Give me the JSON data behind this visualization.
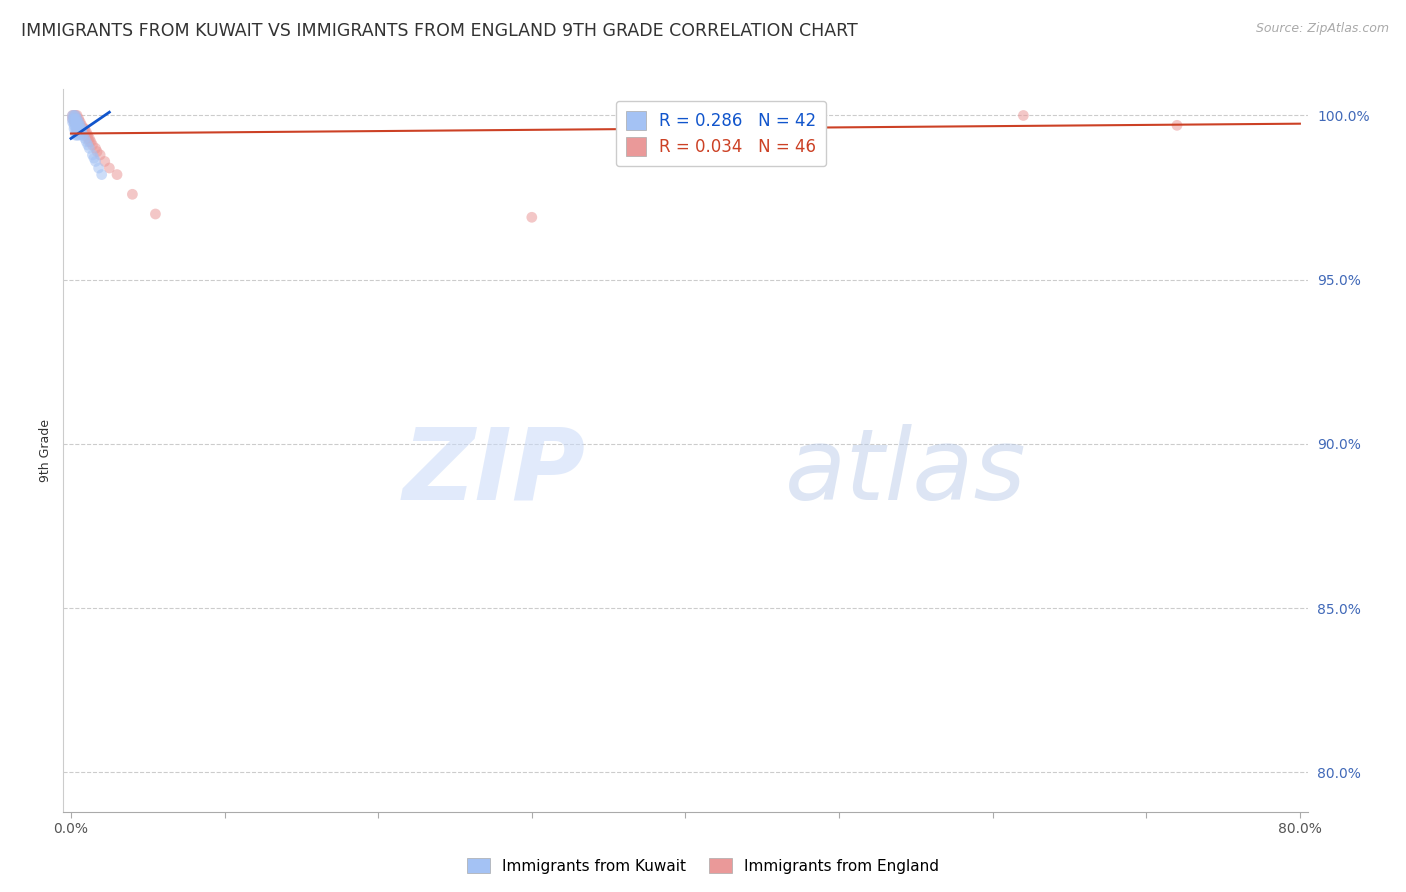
{
  "title": "IMMIGRANTS FROM KUWAIT VS IMMIGRANTS FROM ENGLAND 9TH GRADE CORRELATION CHART",
  "source": "Source: ZipAtlas.com",
  "ylabel": "9th Grade",
  "legend_blue_r": "R = 0.286",
  "legend_blue_n": "N = 42",
  "legend_pink_r": "R = 0.034",
  "legend_pink_n": "N = 46",
  "xlim": [
    -0.005,
    0.805
  ],
  "ylim": [
    0.788,
    1.008
  ],
  "xtick_labels": [
    "0.0%",
    "",
    "",
    "",
    "",
    "",
    "",
    "",
    "80.0%"
  ],
  "xtick_values": [
    0.0,
    0.1,
    0.2,
    0.3,
    0.4,
    0.5,
    0.6,
    0.7,
    0.8
  ],
  "ytick_labels": [
    "100.0%",
    "95.0%",
    "90.0%",
    "85.0%",
    "80.0%"
  ],
  "ytick_values": [
    1.0,
    0.95,
    0.9,
    0.85,
    0.8
  ],
  "ytick_color": "#4169b8",
  "watermark_zip": "ZIP",
  "watermark_atlas": "atlas",
  "blue_scatter_x": [
    0.001,
    0.001,
    0.001,
    0.002,
    0.002,
    0.002,
    0.002,
    0.002,
    0.003,
    0.003,
    0.003,
    0.003,
    0.003,
    0.003,
    0.003,
    0.004,
    0.004,
    0.004,
    0.004,
    0.004,
    0.004,
    0.005,
    0.005,
    0.005,
    0.005,
    0.005,
    0.006,
    0.006,
    0.006,
    0.007,
    0.007,
    0.007,
    0.008,
    0.009,
    0.01,
    0.011,
    0.012,
    0.014,
    0.015,
    0.016,
    0.018,
    0.02
  ],
  "blue_scatter_y": [
    1.0,
    0.999,
    0.998,
    1.0,
    0.999,
    0.998,
    0.997,
    0.996,
    1.0,
    0.999,
    0.998,
    0.997,
    0.996,
    0.995,
    0.994,
    0.999,
    0.998,
    0.997,
    0.996,
    0.995,
    0.994,
    0.998,
    0.997,
    0.996,
    0.995,
    0.994,
    0.997,
    0.996,
    0.995,
    0.996,
    0.995,
    0.994,
    0.994,
    0.993,
    0.992,
    0.991,
    0.99,
    0.988,
    0.987,
    0.986,
    0.984,
    0.982
  ],
  "pink_scatter_x": [
    0.001,
    0.001,
    0.002,
    0.002,
    0.002,
    0.003,
    0.003,
    0.003,
    0.004,
    0.004,
    0.004,
    0.004,
    0.004,
    0.004,
    0.005,
    0.005,
    0.005,
    0.005,
    0.006,
    0.006,
    0.006,
    0.007,
    0.007,
    0.008,
    0.008,
    0.009,
    0.009,
    0.01,
    0.01,
    0.011,
    0.011,
    0.012,
    0.012,
    0.013,
    0.014,
    0.016,
    0.017,
    0.019,
    0.022,
    0.025,
    0.03,
    0.04,
    0.055,
    0.3,
    0.62,
    0.72
  ],
  "pink_scatter_y": [
    1.0,
    0.999,
    1.0,
    0.999,
    0.998,
    1.0,
    0.999,
    0.998,
    1.0,
    0.999,
    0.998,
    0.997,
    0.996,
    0.995,
    0.999,
    0.998,
    0.997,
    0.996,
    0.998,
    0.997,
    0.996,
    0.997,
    0.996,
    0.996,
    0.995,
    0.996,
    0.995,
    0.995,
    0.994,
    0.994,
    0.993,
    0.993,
    0.992,
    0.992,
    0.991,
    0.99,
    0.989,
    0.988,
    0.986,
    0.984,
    0.982,
    0.976,
    0.97,
    0.969,
    1.0,
    0.997
  ],
  "blue_line_x0": 0.0,
  "blue_line_x1": 0.025,
  "blue_line_y0": 0.993,
  "blue_line_y1": 1.001,
  "pink_line_x0": 0.0,
  "pink_line_x1": 0.8,
  "pink_line_y0": 0.9945,
  "pink_line_y1": 0.9975,
  "blue_color": "#a4c2f4",
  "pink_color": "#ea9999",
  "blue_line_color": "#1155cc",
  "pink_line_color": "#cc4125",
  "background_color": "#ffffff",
  "grid_color": "#cccccc",
  "scatter_size": 60,
  "scatter_alpha": 0.55,
  "title_fontsize": 12.5,
  "axis_label_fontsize": 9,
  "tick_fontsize": 10,
  "legend_fontsize": 12
}
